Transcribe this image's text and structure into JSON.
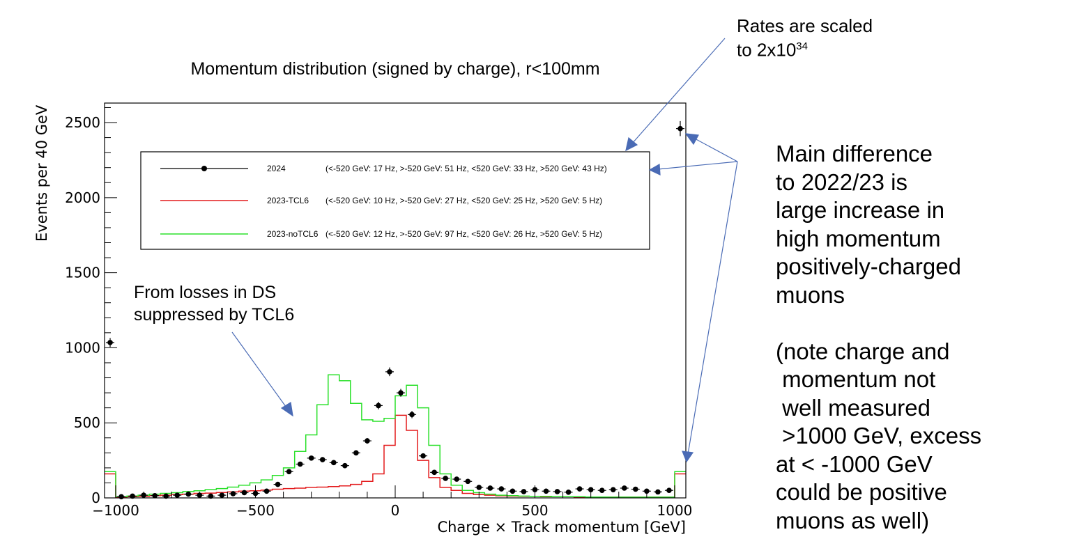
{
  "chart_data": {
    "type": "line",
    "title": "Momentum distribution (signed by charge), r<100mm",
    "xlabel": "Charge × Track momentum [GeV]",
    "ylabel": "Events per 40 GeV",
    "xlim": [
      -1040,
      1040
    ],
    "ylim": [
      0,
      2630
    ],
    "xticks": [
      -1000,
      -500,
      0,
      500,
      1000
    ],
    "xtick_labels": [
      "−1000",
      "−500",
      "0",
      "500",
      "1000"
    ],
    "yticks": [
      0,
      500,
      1000,
      1500,
      2000,
      2500
    ],
    "ytick_labels": [
      "0",
      "500",
      "1000",
      "1500",
      "2000",
      "2500"
    ],
    "grid": false,
    "legend_position": "top",
    "bin_edges": [
      -1040,
      -1000,
      -960,
      -920,
      -880,
      -840,
      -800,
      -760,
      -720,
      -680,
      -640,
      -600,
      -560,
      -520,
      -480,
      -440,
      -400,
      -360,
      -320,
      -280,
      -240,
      -200,
      -160,
      -120,
      -80,
      -40,
      0,
      40,
      80,
      120,
      160,
      200,
      240,
      280,
      320,
      360,
      400,
      440,
      480,
      520,
      560,
      600,
      640,
      680,
      720,
      760,
      800,
      840,
      880,
      920,
      960,
      1000,
      1040
    ],
    "series": [
      {
        "name": "2024",
        "legend_label": "2024",
        "legend_rates": "(<-520 GeV: 17 Hz, >-520 GeV: 51 Hz, <520 GeV: 33 Hz, >520 GeV: 43 Hz)",
        "style": "markers",
        "color": "#000000",
        "x": [
          -1020,
          -980,
          -940,
          -900,
          -860,
          -820,
          -780,
          -740,
          -700,
          -660,
          -620,
          -580,
          -540,
          -500,
          -460,
          -420,
          -380,
          -340,
          -300,
          -260,
          -220,
          -180,
          -140,
          -100,
          -60,
          -20,
          20,
          60,
          100,
          140,
          180,
          220,
          260,
          300,
          340,
          380,
          420,
          460,
          500,
          540,
          580,
          620,
          660,
          700,
          740,
          780,
          820,
          860,
          900,
          940,
          980,
          1020
        ],
        "values": [
          1035,
          8,
          12,
          18,
          15,
          12,
          18,
          25,
          18,
          12,
          18,
          28,
          35,
          30,
          45,
          90,
          175,
          225,
          265,
          255,
          235,
          215,
          300,
          380,
          615,
          840,
          700,
          555,
          280,
          170,
          130,
          125,
          110,
          70,
          65,
          60,
          45,
          42,
          55,
          45,
          42,
          38,
          60,
          55,
          50,
          55,
          65,
          58,
          45,
          40,
          50,
          2460
        ],
        "errors": [
          30,
          3,
          4,
          4,
          4,
          3,
          4,
          5,
          4,
          3,
          4,
          5,
          6,
          5,
          7,
          9,
          13,
          15,
          16,
          16,
          15,
          15,
          17,
          19,
          25,
          29,
          26,
          24,
          17,
          13,
          11,
          11,
          10,
          8,
          8,
          8,
          7,
          7,
          7,
          7,
          7,
          6,
          8,
          7,
          7,
          7,
          8,
          8,
          7,
          6,
          7,
          50
        ]
      },
      {
        "name": "2023-TCL6",
        "legend_label": "2023-TCL6",
        "legend_rates": "(<-520 GeV: 10 Hz, >-520 GeV: 27 Hz, <520 GeV: 25 Hz, >520 GeV: 5 Hz)",
        "style": "step",
        "color": "#e31a1c",
        "values": [
          160,
          5,
          8,
          10,
          15,
          18,
          22,
          25,
          30,
          32,
          36,
          40,
          45,
          48,
          52,
          58,
          62,
          65,
          70,
          72,
          75,
          80,
          90,
          110,
          160,
          350,
          550,
          450,
          250,
          135,
          70,
          50,
          30,
          22,
          18,
          14,
          12,
          10,
          10,
          8,
          8,
          8,
          6,
          6,
          5,
          5,
          5,
          5,
          5,
          5,
          5,
          160
        ]
      },
      {
        "name": "2023-noTCL6",
        "legend_label": "2023-noTCL6",
        "legend_rates": "(<-520 GeV: 12 Hz, >-520 GeV: 97 Hz, <520 GeV: 26 Hz, >520 GeV: 5 Hz)",
        "style": "step",
        "color": "#2ae02a",
        "values": [
          175,
          8,
          12,
          18,
          25,
          30,
          35,
          42,
          48,
          55,
          62,
          72,
          85,
          100,
          120,
          150,
          200,
          310,
          420,
          620,
          820,
          780,
          630,
          520,
          510,
          530,
          680,
          750,
          600,
          350,
          160,
          85,
          50,
          35,
          25,
          18,
          15,
          12,
          10,
          10,
          8,
          8,
          8,
          6,
          6,
          5,
          5,
          5,
          5,
          5,
          5,
          175
        ]
      }
    ],
    "annotations": [
      {
        "text": "Rates are scaled"
      },
      {
        "text": "to 2x10"
      },
      {
        "text": "34"
      },
      {
        "text": "From losses in DS"
      },
      {
        "text": "suppressed by TCL6"
      }
    ]
  },
  "side_note": {
    "text": "Main difference\nto 2022/23 is\nlarge increase in\nhigh momentum\npositively-charged\nmuons\n\n(note charge and\n momentum not\n well measured\n >1000 GeV, excess\nat < -1000 GeV\ncould be positive\nmuons as well)"
  },
  "colors": {
    "arrow": "#4a6bb5",
    "frame": "#000000"
  }
}
